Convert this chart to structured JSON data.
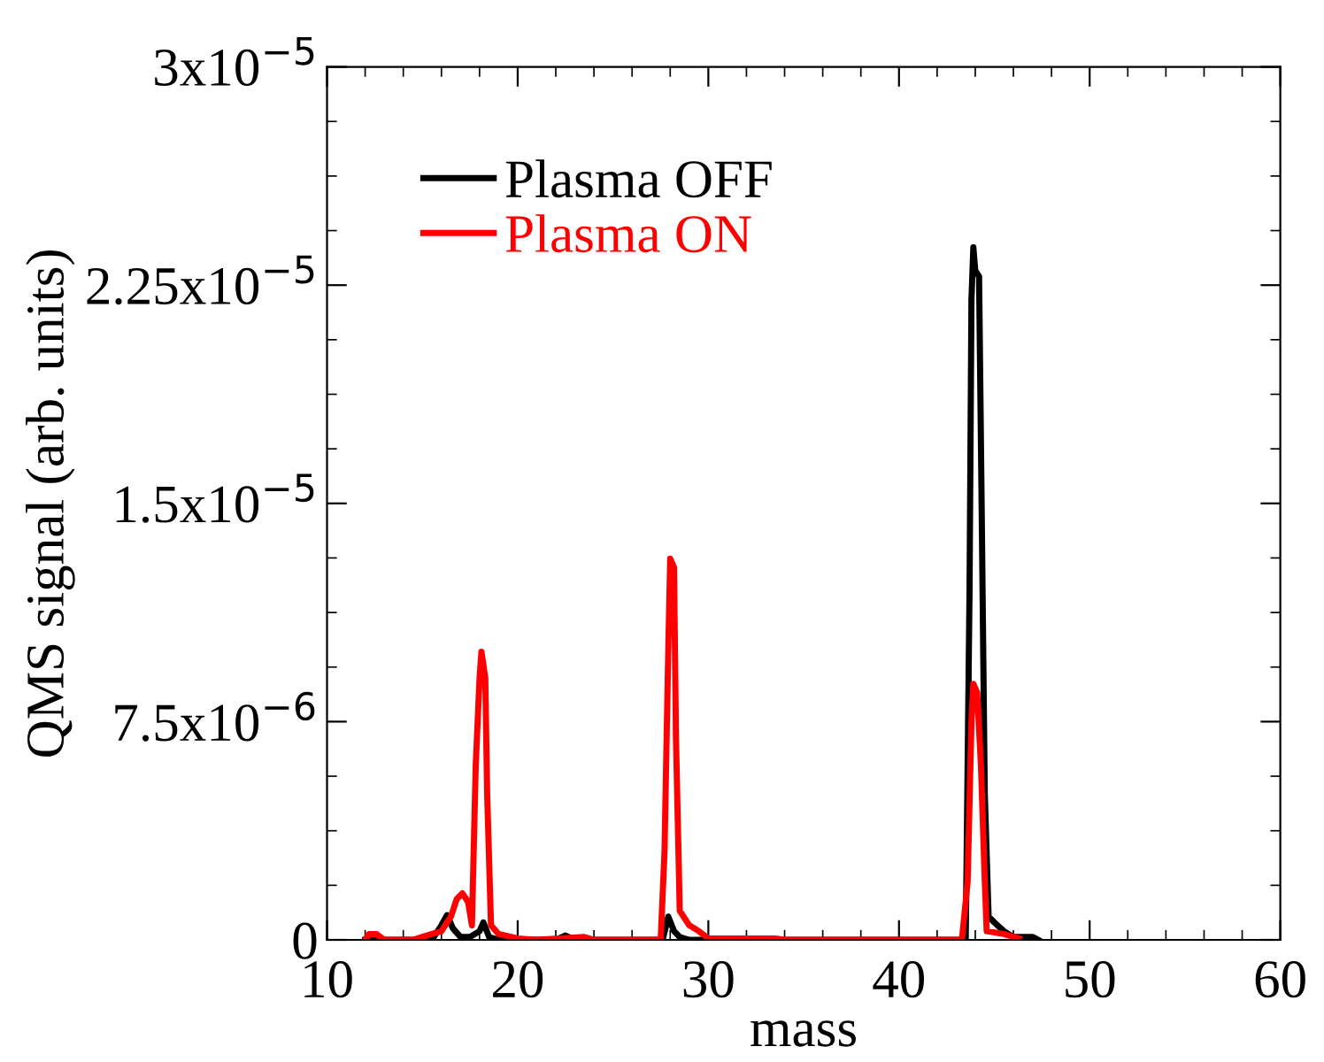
{
  "chart_data": {
    "type": "line",
    "xlabel": "mass",
    "ylabel": "QMS signal (arb. units)",
    "xlim": [
      10,
      60
    ],
    "xticks": [
      10,
      20,
      30,
      40,
      50,
      60
    ],
    "ylim": [
      0,
      3e-05
    ],
    "yticks": [
      0,
      {
        "value": 7.5e-06,
        "label": "7.5x10$^{−6}$"
      },
      {
        "value": 1.5e-05,
        "label": "1.5x10$^{−5}$"
      },
      {
        "value": 2.25e-05,
        "label": "2.25x10$^{−5}$"
      },
      {
        "value": 3e-05,
        "label": "3x10$^{−5}$"
      }
    ],
    "legend": "top left",
    "grid": false,
    "marker": "none",
    "line_style": "solid",
    "series": [
      {
        "name": "Plasma OFF",
        "color": "#000000",
        "x": [
          12,
          15.5,
          16,
          16.3,
          16.6,
          17,
          17.5,
          18,
          18.2,
          18.5,
          19,
          22,
          22.5,
          23,
          27.6,
          27.9,
          28.2,
          28.5,
          29,
          43.5,
          43.7,
          43.8,
          43.9,
          44.0,
          44.2,
          44.3,
          44.5,
          44.7,
          45,
          45.5,
          46,
          47,
          47.3
        ],
        "values": [
          0,
          0,
          5e-07,
          8.5e-07,
          4e-07,
          1e-07,
          1e-07,
          3e-07,
          6e-07,
          1e-07,
          0,
          0,
          1.5e-07,
          0,
          0,
          8e-07,
          3e-07,
          1e-07,
          0,
          0,
          1.2e-05,
          2.2e-05,
          2.38e-05,
          2.3e-05,
          2.28e-05,
          1.7e-05,
          5e-06,
          8e-07,
          6e-07,
          3e-07,
          1e-07,
          1e-07,
          0
        ]
      },
      {
        "name": "Plasma ON",
        "color": "#ff0000",
        "x": [
          12,
          12.2,
          12.6,
          13,
          14.5,
          15.5,
          16,
          16.5,
          16.8,
          17.1,
          17.4,
          17.6,
          17.8,
          18.0,
          18.1,
          18.3,
          18.4,
          18.6,
          19,
          20,
          21,
          23.5,
          24,
          27.5,
          27.7,
          27.9,
          28.0,
          28.2,
          28.3,
          28.5,
          29,
          29.5,
          30,
          33.5,
          34,
          43.3,
          43.6,
          43.8,
          43.9,
          44.1,
          44.3,
          44.5,
          44.6,
          45.5,
          46.3
        ],
        "values": [
          0,
          2e-07,
          2e-07,
          0,
          0,
          2e-07,
          3e-07,
          8e-07,
          1.4e-06,
          1.6e-06,
          1.3e-06,
          5e-07,
          6e-06,
          9e-06,
          9.9e-06,
          9e-06,
          5e-06,
          5e-07,
          2e-07,
          5e-08,
          0,
          1e-07,
          0,
          0,
          3e-06,
          1e-05,
          1.31e-05,
          1.28e-05,
          7e-06,
          1e-06,
          5e-07,
          3e-07,
          5e-08,
          5e-08,
          0,
          0,
          2e-06,
          7.5e-06,
          8.8e-06,
          8.5e-06,
          6e-06,
          2e-06,
          3e-07,
          2e-07,
          5e-08
        ]
      }
    ]
  }
}
